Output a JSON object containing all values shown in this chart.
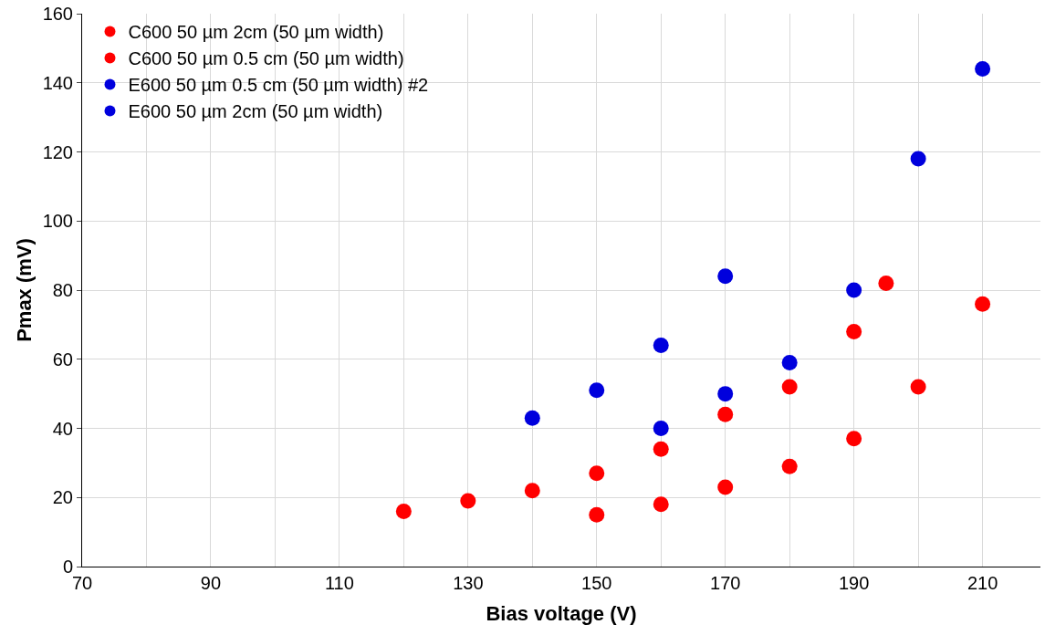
{
  "chart_data": {
    "type": "scatter",
    "xlabel": "Bias voltage (V)",
    "ylabel": "Pmax (mV)",
    "xlim": [
      70,
      219
    ],
    "ylim": [
      0,
      160
    ],
    "xticks": [
      70,
      {
        "value": 80,
        "label": null
      },
      90,
      {
        "value": 100,
        "label": null
      },
      110,
      {
        "value": 120,
        "label": null
      },
      130,
      {
        "value": 140,
        "label": null
      },
      150,
      {
        "value": 160,
        "label": null
      },
      170,
      {
        "value": 180,
        "label": null
      },
      190,
      {
        "value": 200,
        "label": null
      },
      210
    ],
    "yticks": [
      0,
      20,
      40,
      60,
      80,
      100,
      120,
      140,
      160
    ],
    "grid": true,
    "legend": "top left",
    "marker": "circle",
    "series": [
      {
        "name": "C600 50 µm 2cm (50 µm width)",
        "color": "#ff0000",
        "x": [
          150,
          160,
          170,
          180,
          190,
          200,
          210
        ],
        "values": [
          15,
          18,
          23,
          29,
          37,
          52,
          76
        ]
      },
      {
        "name": "C600 50 µm 0.5 cm (50 µm width)",
        "color": "#ff0000",
        "x": [
          120,
          130,
          140,
          150,
          160,
          170,
          180,
          190,
          195
        ],
        "values": [
          16,
          19,
          22,
          27,
          34,
          44,
          52,
          68,
          82
        ]
      },
      {
        "name": "E600 50 µm 0.5 cm (50 µm width) #2",
        "color": "#0000dd",
        "x": [
          140,
          150,
          160,
          170
        ],
        "values": [
          43,
          51,
          64,
          84
        ]
      },
      {
        "name": "E600 50 µm 2cm (50 µm width)",
        "color": "#0000dd",
        "x": [
          160,
          170,
          180,
          190,
          200,
          210
        ],
        "values": [
          40,
          50,
          59,
          80,
          118,
          144
        ]
      }
    ]
  }
}
